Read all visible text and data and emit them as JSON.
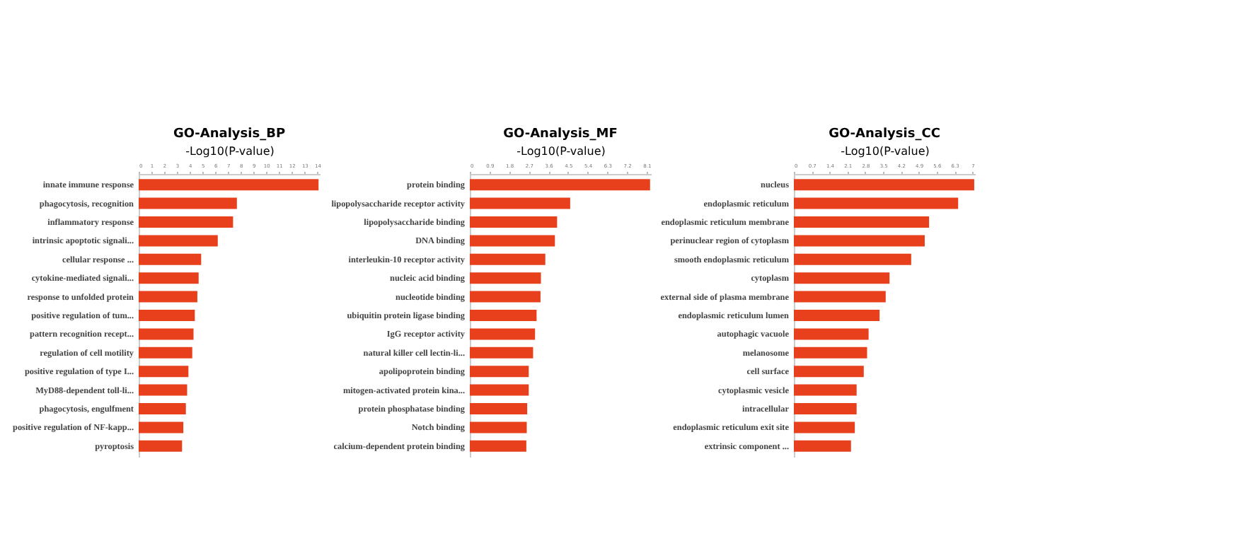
{
  "chart_data": [
    {
      "type": "bar",
      "orientation": "horizontal",
      "title": "GO-Analysis_BP",
      "xlabel": "-Log10(P-value)",
      "grid": false,
      "categories": [
        "innate immune response",
        "phagocytosis, recognition",
        "inflammatory response",
        "intrinsic apoptotic signali...",
        "cellular response ...",
        "cytokine-mediated signali...",
        "response to unfolded protein",
        "positive regulation of tum...",
        "pattern recognition recept...",
        "regulation of cell motility",
        "positive regulation of type I...",
        "MyD88-dependent toll-li...",
        "phagocytosis, engulfment",
        "positive regulation of NF-kapp...",
        "pyroptosis"
      ],
      "series": [
        {
          "color": "#e8401c",
          "values": [
            14.1,
            7.7,
            7.4,
            6.2,
            4.9,
            4.7,
            4.6,
            4.4,
            4.3,
            4.2,
            3.9,
            3.8,
            3.7,
            3.5,
            3.4
          ]
        }
      ],
      "xlim": [
        0,
        14.2
      ],
      "xticks": [
        0,
        1,
        2,
        3,
        4,
        5,
        6,
        7,
        8,
        9,
        10,
        11,
        12,
        13,
        14
      ]
    },
    {
      "type": "bar",
      "orientation": "horizontal",
      "title": "GO-Analysis_MF",
      "xlabel": "-Log10(P-value)",
      "grid": false,
      "categories": [
        "protein binding",
        "lipopolysaccharide receptor activity",
        "lipopolysaccharide binding",
        "DNA binding",
        "interleukin-10 receptor activity",
        "nucleic acid binding",
        "nucleotide binding",
        "ubiquitin protein ligase binding",
        "IgG receptor activity",
        "natural killer cell lectin-li...",
        "apolipoprotein binding",
        "mitogen-activated protein kina...",
        "protein phosphatase binding",
        "Notch binding",
        "calcium-dependent protein binding"
      ],
      "series": [
        {
          "color": "#e8401c",
          "values": [
            8.26,
            4.6,
            4.0,
            3.9,
            3.46,
            3.26,
            3.24,
            3.06,
            2.99,
            2.9,
            2.7,
            2.7,
            2.63,
            2.61,
            2.59
          ]
        }
      ],
      "xlim": [
        0,
        8.3
      ],
      "xticks": [
        0,
        0.9,
        1.8,
        2.7,
        3.6,
        4.5,
        5.4,
        6.3,
        7.2,
        8.1
      ]
    },
    {
      "type": "bar",
      "orientation": "horizontal",
      "title": "GO-Analysis_CC",
      "xlabel": "-Log10(P-value)",
      "grid": false,
      "categories": [
        "nucleus",
        "endoplasmic reticulum",
        "endoplasmic reticulum membrane",
        "perinuclear region of cytoplasm",
        "smooth endoplasmic reticulum",
        "cytoplasm",
        "external side of plasma membrane",
        "endoplasmic reticulum lumen",
        "autophagic vacuole",
        "melanosome",
        "cell surface",
        "cytoplasmic vesicle",
        "intracellular",
        "endoplasmic reticulum exit site",
        "extrinsic component ..."
      ],
      "series": [
        {
          "color": "#e8401c",
          "values": [
            7.07,
            6.44,
            5.3,
            5.13,
            4.6,
            3.75,
            3.6,
            3.36,
            2.93,
            2.87,
            2.74,
            2.46,
            2.46,
            2.39,
            2.24
          ]
        }
      ],
      "xlim": [
        0,
        7.1
      ],
      "xticks": [
        0,
        0.7,
        1.4,
        2.1,
        2.8,
        3.5,
        4.2,
        4.9,
        5.6,
        6.3,
        7
      ]
    }
  ]
}
